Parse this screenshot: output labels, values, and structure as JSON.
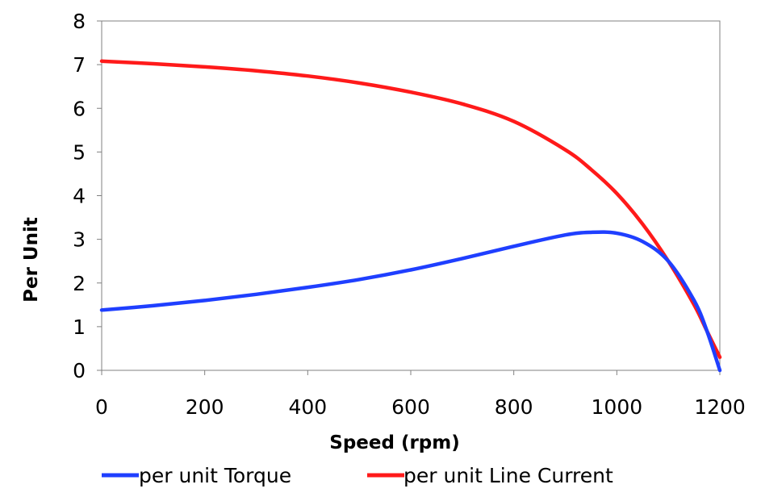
{
  "chart_data": {
    "type": "line",
    "title": "",
    "xlabel": "Speed (rpm)",
    "ylabel": "Per Unit",
    "xlim": [
      0,
      1200
    ],
    "ylim": [
      0,
      8
    ],
    "xticks": [
      0,
      200,
      400,
      600,
      800,
      1000,
      1200
    ],
    "yticks": [
      0,
      1,
      2,
      3,
      4,
      5,
      6,
      7,
      8
    ],
    "grid": false,
    "legend_position": "bottom",
    "series": [
      {
        "name": "per unit Torque",
        "color": "#1f3fff",
        "points": [
          [
            0,
            1.38
          ],
          [
            100,
            1.48
          ],
          [
            200,
            1.6
          ],
          [
            300,
            1.74
          ],
          [
            400,
            1.9
          ],
          [
            500,
            2.08
          ],
          [
            600,
            2.3
          ],
          [
            700,
            2.56
          ],
          [
            800,
            2.84
          ],
          [
            900,
            3.1
          ],
          [
            950,
            3.16
          ],
          [
            1000,
            3.14
          ],
          [
            1050,
            2.95
          ],
          [
            1100,
            2.5
          ],
          [
            1150,
            1.6
          ],
          [
            1175,
            0.9
          ],
          [
            1200,
            0.0
          ]
        ]
      },
      {
        "name": "per unit Line Current",
        "color": "#ff1a1a",
        "points": [
          [
            0,
            7.08
          ],
          [
            100,
            7.02
          ],
          [
            200,
            6.95
          ],
          [
            300,
            6.86
          ],
          [
            400,
            6.74
          ],
          [
            500,
            6.58
          ],
          [
            600,
            6.37
          ],
          [
            700,
            6.1
          ],
          [
            800,
            5.7
          ],
          [
            900,
            5.05
          ],
          [
            950,
            4.6
          ],
          [
            1000,
            4.05
          ],
          [
            1050,
            3.35
          ],
          [
            1100,
            2.5
          ],
          [
            1150,
            1.5
          ],
          [
            1175,
            0.9
          ],
          [
            1200,
            0.3
          ]
        ]
      }
    ]
  }
}
